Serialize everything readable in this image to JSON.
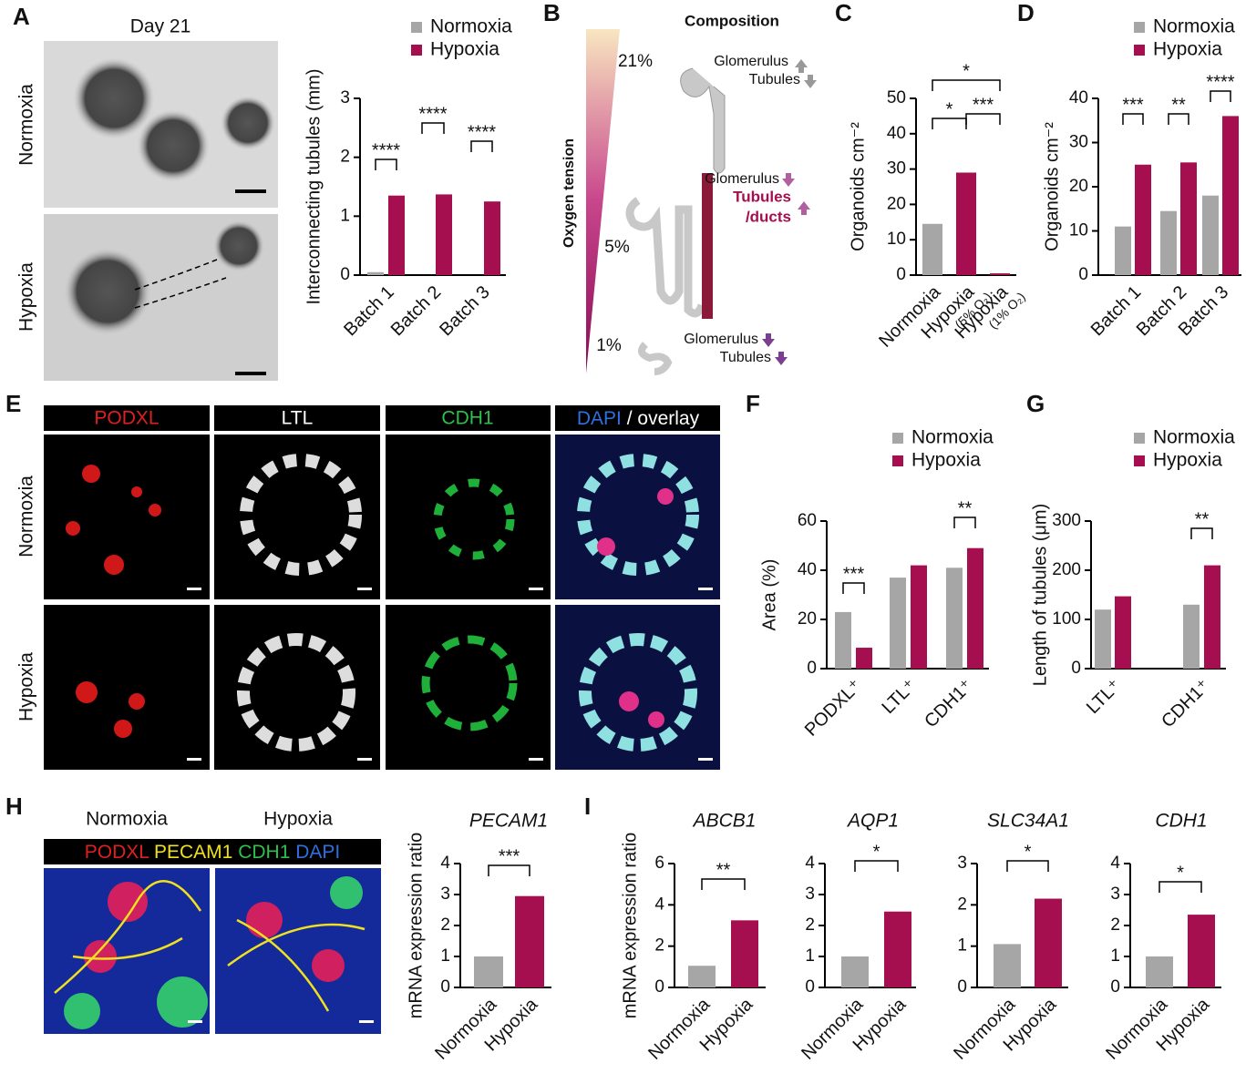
{
  "panel_labels": [
    "A",
    "B",
    "C",
    "D",
    "E",
    "F",
    "G",
    "H",
    "I"
  ],
  "panel_a": {
    "title": "Day 21",
    "rows": [
      "Normoxia",
      "Hypoxia"
    ]
  },
  "panel_b": {
    "title": "Composition",
    "axis_label": "Oxygen tension",
    "levels": [
      "21%",
      "5%",
      "1%"
    ],
    "notes": [
      [
        "Glomerulus",
        "Tubules"
      ],
      [
        "Glomerulus",
        "Tubules",
        "/ducts"
      ],
      [
        "Glomerulus",
        "Tubules"
      ]
    ]
  },
  "panel_e": {
    "channels": [
      "PODXL",
      "LTL",
      "CDH1",
      "DAPI",
      "/ overlay"
    ],
    "rows": [
      "Normoxia",
      "Hypoxia"
    ]
  },
  "panel_h": {
    "columns": [
      "Normoxia",
      "Hypoxia"
    ],
    "channels": [
      "PODXL",
      "PECAM1",
      "CDH1",
      "DAPI"
    ]
  },
  "chart_data": [
    {
      "type": "bar",
      "ylabel": "Interconnecting tubules (mm)",
      "categories": [
        "Batch 1",
        "Batch 2",
        "Batch 3"
      ],
      "series": [
        {
          "name": "Normoxia",
          "color": "#a6a6a6",
          "values": [
            0.05,
            0,
            0
          ]
        },
        {
          "name": "Hypoxia",
          "color": "#a50f4f",
          "values": [
            1.35,
            1.37,
            1.25
          ]
        }
      ],
      "ylim": [
        0,
        3
      ],
      "yticks": [
        0,
        1,
        2,
        3
      ],
      "annotations": [
        "****",
        "****",
        "****"
      ]
    },
    {
      "type": "bar",
      "ylabel": "Organoids cm⁻²",
      "categories": [
        "Normoxia",
        "Hypoxia",
        "Hypoxia"
      ],
      "category_notes": [
        null,
        "(5% O₂)",
        "(1% O₂)"
      ],
      "values": [
        14.5,
        29,
        0.5
      ],
      "colors": [
        "#a6a6a6",
        "#a50f4f",
        "#a50f4f"
      ],
      "ylim": [
        0,
        50
      ],
      "yticks": [
        0,
        10,
        20,
        30,
        40,
        50
      ],
      "annotations": [
        "*",
        "***",
        "*"
      ]
    },
    {
      "type": "bar",
      "ylabel": "Organoids cm⁻²",
      "categories": [
        "Batch 1",
        "Batch 2",
        "Batch 3"
      ],
      "series": [
        {
          "name": "Normoxia",
          "color": "#a6a6a6",
          "values": [
            11,
            14.5,
            18
          ]
        },
        {
          "name": "Hypoxia",
          "color": "#a50f4f",
          "values": [
            25,
            25.5,
            36
          ]
        }
      ],
      "ylim": [
        0,
        40
      ],
      "yticks": [
        0,
        10,
        20,
        30,
        40
      ],
      "annotations": [
        "***",
        "**",
        "****"
      ]
    },
    {
      "type": "bar",
      "ylabel": "Area (%)",
      "categories": [
        "PODXL⁺",
        "LTL⁺",
        "CDH1⁺"
      ],
      "series": [
        {
          "name": "Normoxia",
          "color": "#a6a6a6",
          "values": [
            23,
            37,
            41
          ]
        },
        {
          "name": "Hypoxia",
          "color": "#a50f4f",
          "values": [
            8.5,
            42,
            49
          ]
        }
      ],
      "ylim": [
        0,
        60
      ],
      "yticks": [
        0,
        20,
        40,
        60
      ],
      "annotations": [
        "***",
        "**"
      ]
    },
    {
      "type": "bar",
      "ylabel": "Length of tubules (μm)",
      "categories": [
        "LTL⁺",
        "CDH1⁺"
      ],
      "series": [
        {
          "name": "Normoxia",
          "color": "#a6a6a6",
          "values": [
            120,
            130
          ]
        },
        {
          "name": "Hypoxia",
          "color": "#a50f4f",
          "values": [
            147,
            210
          ]
        }
      ],
      "ylim": [
        0,
        300
      ],
      "yticks": [
        0,
        100,
        200,
        300
      ],
      "annotations": [
        "**"
      ]
    },
    {
      "type": "bar",
      "title": "PECAM1",
      "ylabel": "mRNA expression ratio",
      "categories": [
        "Normoxia",
        "Hypoxia"
      ],
      "values": [
        1.0,
        2.95
      ],
      "colors": [
        "#a6a6a6",
        "#a50f4f"
      ],
      "ylim": [
        0,
        4
      ],
      "yticks": [
        0,
        1,
        2,
        3,
        4
      ],
      "annotations": [
        "***"
      ]
    },
    {
      "type": "bar",
      "title": "ABCB1",
      "ylabel": "mRNA expression ratio",
      "categories": [
        "Normoxia",
        "Hypoxia"
      ],
      "values": [
        1.05,
        3.25
      ],
      "colors": [
        "#a6a6a6",
        "#a50f4f"
      ],
      "ylim": [
        0,
        6
      ],
      "yticks": [
        0,
        2,
        4,
        6
      ],
      "annotations": [
        "**"
      ]
    },
    {
      "type": "bar",
      "title": "AQP1",
      "categories": [
        "Normoxia",
        "Hypoxia"
      ],
      "values": [
        1.0,
        2.45
      ],
      "colors": [
        "#a6a6a6",
        "#a50f4f"
      ],
      "ylim": [
        0,
        4
      ],
      "yticks": [
        0,
        1,
        2,
        3,
        4
      ],
      "annotations": [
        "*"
      ]
    },
    {
      "type": "bar",
      "title": "SLC34A1",
      "categories": [
        "Normoxia",
        "Hypoxia"
      ],
      "values": [
        1.05,
        2.15
      ],
      "colors": [
        "#a6a6a6",
        "#a50f4f"
      ],
      "ylim": [
        0,
        3
      ],
      "yticks": [
        0,
        1,
        2,
        3
      ],
      "annotations": [
        "*"
      ]
    },
    {
      "type": "bar",
      "title": "CDH1",
      "categories": [
        "Normoxia",
        "Hypoxia"
      ],
      "values": [
        1.0,
        2.35
      ],
      "colors": [
        "#a6a6a6",
        "#a50f4f"
      ],
      "ylim": [
        0,
        4
      ],
      "yticks": [
        0,
        1,
        2,
        3,
        4
      ],
      "annotations": [
        "*"
      ]
    }
  ]
}
